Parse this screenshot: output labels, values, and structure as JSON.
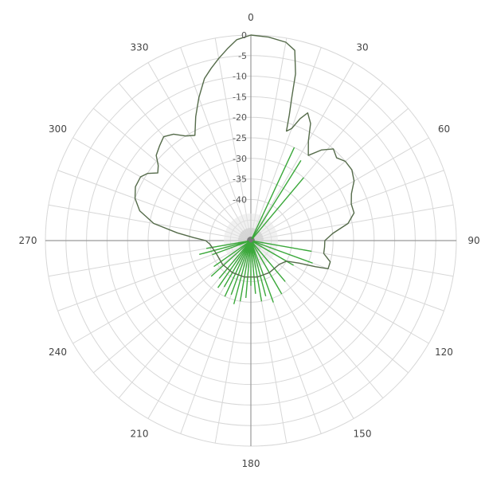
{
  "chart_data": {
    "type": "polar-line",
    "title": "",
    "angular_axis": {
      "unit": "degrees",
      "direction": "clockwise",
      "zero_at": "top",
      "tick_labels": [
        {
          "angle": 0,
          "label": "0"
        },
        {
          "angle": 30,
          "label": "30"
        },
        {
          "angle": 60,
          "label": "60"
        },
        {
          "angle": 90,
          "label": "90"
        },
        {
          "angle": 120,
          "label": "120"
        },
        {
          "angle": 150,
          "label": "150"
        },
        {
          "angle": 180,
          "label": "180"
        },
        {
          "angle": 210,
          "label": "210"
        },
        {
          "angle": 240,
          "label": "240"
        },
        {
          "angle": 270,
          "label": "270"
        },
        {
          "angle": 300,
          "label": "300"
        },
        {
          "angle": 330,
          "label": "330"
        }
      ]
    },
    "radial_axis": {
      "unit": "dB",
      "max": 0,
      "min": -50,
      "tick_values": [
        0,
        -5,
        -10,
        -15,
        -20,
        -25,
        -30,
        -35,
        -40
      ],
      "tick_labels": [
        "0",
        "-5",
        "-10",
        "-15",
        "-20",
        "-25",
        "-30",
        "-35",
        "-40"
      ]
    },
    "grid": true,
    "colors": {
      "main_series": "#556b4a",
      "spikes": "#3aa83a",
      "grid": "#d7d7d7",
      "axis": "#999999",
      "center": "#777777"
    },
    "series": [
      {
        "points": [
          [
            0,
            0
          ],
          [
            5,
            -0.3
          ],
          [
            10,
            -1
          ],
          [
            13,
            -2.5
          ],
          [
            15,
            -8
          ],
          [
            16,
            -14
          ],
          [
            17,
            -18
          ],
          [
            18,
            -22
          ],
          [
            20,
            -21
          ],
          [
            22,
            -18
          ],
          [
            24,
            -16
          ],
          [
            27,
            -18
          ],
          [
            30,
            -22
          ],
          [
            34,
            -25
          ],
          [
            38,
            -22
          ],
          [
            42,
            -20
          ],
          [
            46,
            -21
          ],
          [
            50,
            -20
          ],
          [
            55,
            -20
          ],
          [
            60,
            -21
          ],
          [
            65,
            -23
          ],
          [
            70,
            -24
          ],
          [
            75,
            -24
          ],
          [
            80,
            -26
          ],
          [
            85,
            -30
          ],
          [
            90,
            -32
          ],
          [
            95,
            -32
          ],
          [
            100,
            -32
          ],
          [
            105,
            -30
          ],
          [
            110,
            -30
          ],
          [
            112,
            -33
          ],
          [
            115,
            -37
          ],
          [
            120,
            -40
          ],
          [
            130,
            -41
          ],
          [
            150,
            -41
          ],
          [
            170,
            -41
          ],
          [
            190,
            -41
          ],
          [
            210,
            -41
          ],
          [
            230,
            -41
          ],
          [
            250,
            -41
          ],
          [
            265,
            -40
          ],
          [
            270,
            -39
          ],
          [
            273,
            -36
          ],
          [
            276,
            -32
          ],
          [
            280,
            -26
          ],
          [
            285,
            -22
          ],
          [
            290,
            -20
          ],
          [
            295,
            -19
          ],
          [
            300,
            -19
          ],
          [
            303,
            -20
          ],
          [
            306,
            -22
          ],
          [
            309,
            -21
          ],
          [
            312,
            -19
          ],
          [
            316,
            -18
          ],
          [
            320,
            -17
          ],
          [
            324,
            -18
          ],
          [
            328,
            -20
          ],
          [
            332,
            -21
          ],
          [
            336,
            -17
          ],
          [
            340,
            -13
          ],
          [
            344,
            -9
          ],
          [
            347,
            -7
          ],
          [
            350,
            -5
          ],
          [
            353,
            -3
          ],
          [
            356,
            -1
          ],
          [
            360,
            0
          ]
        ]
      },
      {
        "type": "spikes",
        "points": [
          [
            25,
            -25
          ],
          [
            32,
            -27
          ],
          [
            40,
            -30
          ],
          [
            100,
            -35
          ],
          [
            110,
            -34
          ],
          [
            120,
            -38
          ],
          [
            140,
            -37
          ],
          [
            150,
            -35
          ],
          [
            160,
            -34
          ],
          [
            165,
            -36
          ],
          [
            170,
            -35
          ],
          [
            175,
            -37
          ],
          [
            180,
            -39
          ],
          [
            185,
            -36
          ],
          [
            190,
            -35
          ],
          [
            195,
            -34
          ],
          [
            200,
            -36
          ],
          [
            205,
            -35
          ],
          [
            210,
            -37
          ],
          [
            215,
            -36
          ],
          [
            220,
            -38
          ],
          [
            228,
            -37
          ],
          [
            235,
            -39
          ],
          [
            250,
            -40
          ],
          [
            255,
            -37
          ],
          [
            260,
            -39
          ]
        ]
      }
    ]
  }
}
